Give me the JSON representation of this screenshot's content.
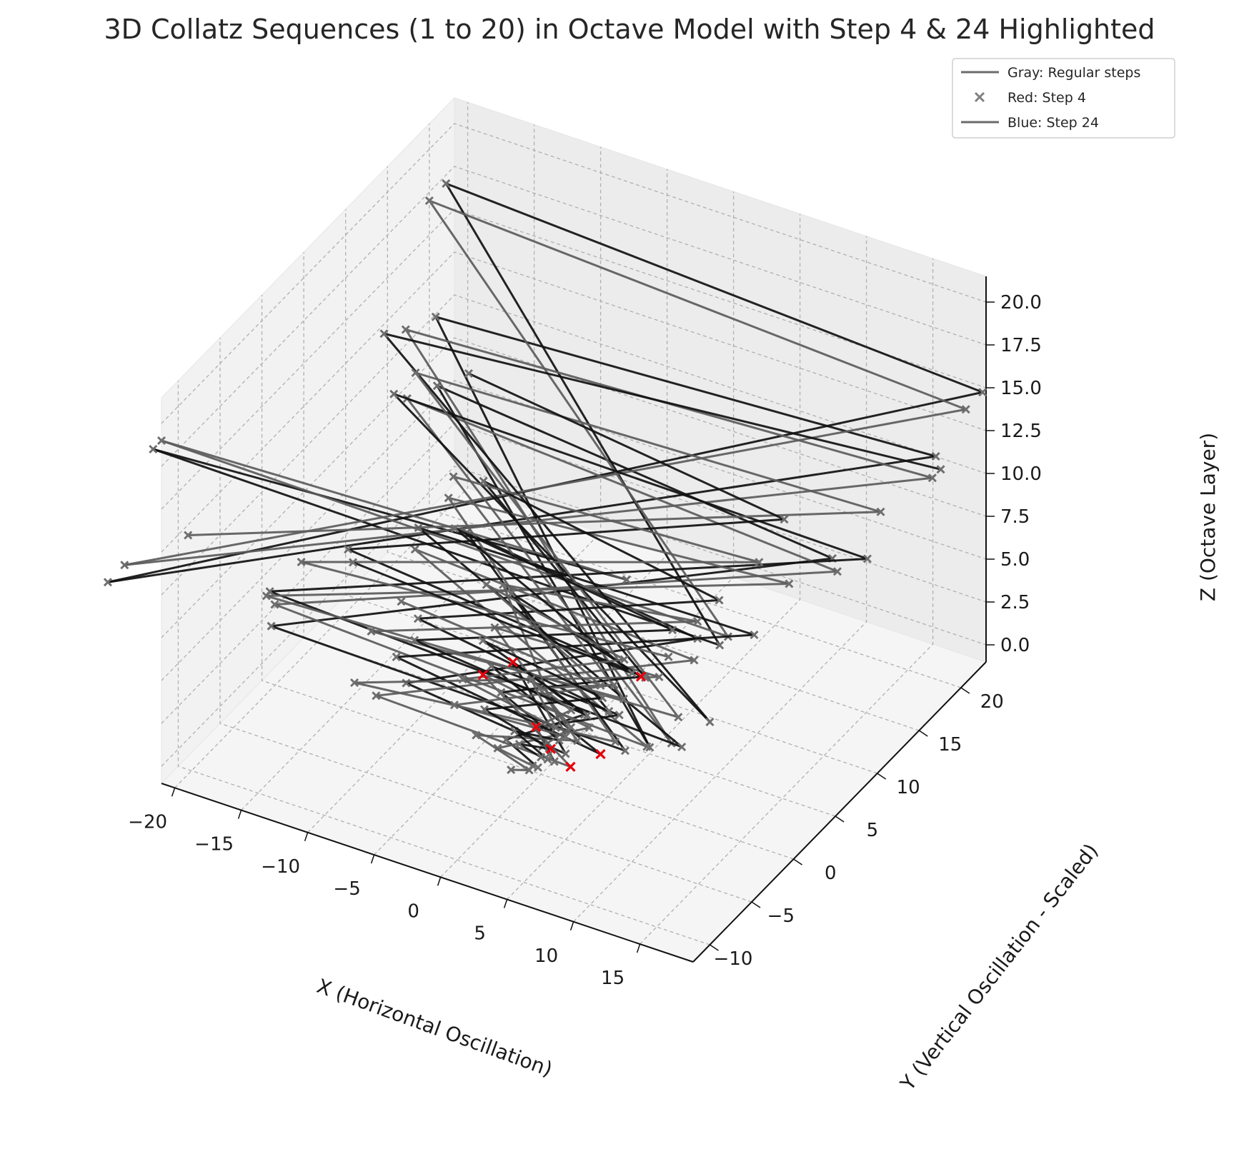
{
  "chart_data": {
    "type": "line3d",
    "title": "3D Collatz Sequences (1 to 20) in Octave Model with Step 4 & 24 Highlighted",
    "xlabel": "X (Horizontal Oscillation)",
    "ylabel": "Y (Vertical Oscillation - Scaled)",
    "zlabel": "Z (Octave Layer)",
    "xlim": [
      -21,
      19
    ],
    "ylim": [
      -12,
      23
    ],
    "zlim": [
      -1,
      21.5
    ],
    "xticks": [
      -20,
      -15,
      -10,
      -5,
      0,
      5,
      10,
      15
    ],
    "yticks": [
      -10,
      -5,
      0,
      5,
      10,
      15,
      20
    ],
    "zticks": [
      0.0,
      2.5,
      5.0,
      7.5,
      10.0,
      12.5,
      15.0,
      17.5,
      20.0
    ],
    "xtick_labels": [
      "−20",
      "−15",
      "−10",
      "−5",
      "0",
      "5",
      "10",
      "15"
    ],
    "ytick_labels": [
      "−10",
      "−5",
      "0",
      "5",
      "10",
      "15",
      "20"
    ],
    "ztick_labels": [
      "0.0",
      "2.5",
      "5.0",
      "7.5",
      "10.0",
      "12.5",
      "15.0",
      "17.5",
      "20.0"
    ],
    "grid": true,
    "legend_position": "top-right",
    "legend": [
      {
        "label": "Gray: Regular steps",
        "marker": "line",
        "color": "#6b6b6b"
      },
      {
        "label": "Red: Step 4",
        "marker": "x",
        "color": "#808080"
      },
      {
        "label": "Blue: Step 24",
        "marker": "line",
        "color": "#6b6b6b"
      }
    ],
    "colors": {
      "dark_line": "#111111",
      "gray_line": "#5c5c5c",
      "marker": "#6e6e6e",
      "highlight": "#e8000b"
    },
    "series": [
      {
        "points": [
          [
            0.4,
            -1,
            0
          ],
          [
            -2,
            -1,
            1
          ],
          [
            2,
            2,
            2
          ],
          [
            -4,
            3,
            3
          ],
          [
            5,
            -5,
            4
          ],
          [
            -7,
            -5,
            5
          ],
          [
            8,
            6,
            6
          ],
          [
            -10,
            7,
            7
          ],
          [
            12,
            -9,
            8
          ],
          [
            -14,
            -10,
            9
          ],
          [
            15,
            11,
            10
          ],
          [
            -16,
            13,
            11
          ],
          [
            17,
            -14,
            12
          ],
          [
            -18,
            16,
            13
          ],
          [
            19,
            17,
            14
          ],
          [
            -20,
            -20,
            15
          ],
          [
            20,
            21,
            16
          ],
          [
            -21,
            22,
            17
          ],
          [
            21,
            -12,
            18
          ],
          [
            -21,
            -13,
            19
          ],
          [
            14,
            -12,
            20
          ]
        ]
      },
      {
        "points": [
          [
            0,
            -1,
            0
          ],
          [
            -2,
            -2,
            1
          ],
          [
            3,
            1,
            2
          ],
          [
            -5,
            1,
            3
          ],
          [
            6,
            -6,
            4
          ],
          [
            -8,
            -7,
            5
          ],
          [
            9,
            4,
            6
          ],
          [
            -12,
            4,
            7
          ],
          [
            13,
            -8,
            8
          ],
          [
            -15,
            -8,
            9
          ],
          [
            16,
            10,
            10
          ],
          [
            -17,
            11,
            11
          ],
          [
            18,
            -13,
            12
          ],
          [
            -19,
            14,
            13
          ],
          [
            20,
            15,
            14
          ],
          [
            -20,
            -18,
            15
          ],
          [
            20,
            19,
            16
          ],
          [
            -21,
            20,
            17
          ],
          [
            21,
            -11,
            18
          ],
          [
            -21,
            -12,
            19
          ],
          [
            14,
            -12,
            20
          ]
        ]
      },
      {
        "points": [
          [
            1,
            0,
            0
          ],
          [
            -1,
            1,
            1
          ],
          [
            4,
            3,
            2
          ],
          [
            -5,
            2,
            3
          ],
          [
            7,
            -4,
            4
          ],
          [
            -9,
            -3,
            5
          ],
          [
            11,
            8,
            6
          ],
          [
            -13,
            6,
            7
          ],
          [
            15,
            -7,
            8
          ],
          [
            -16,
            -7,
            9
          ],
          [
            17,
            12,
            10
          ],
          [
            -18,
            11,
            11
          ],
          [
            19,
            -10,
            12
          ],
          [
            -20,
            13,
            13
          ],
          [
            20,
            16,
            14
          ]
        ]
      },
      {
        "points": [
          [
            -1,
            -2,
            0
          ],
          [
            1,
            -3,
            1
          ],
          [
            -3,
            -3,
            2
          ],
          [
            4,
            -2,
            3
          ],
          [
            -6,
            4,
            4
          ],
          [
            7,
            3,
            5
          ],
          [
            -9,
            -8,
            6
          ],
          [
            10,
            -7,
            7
          ],
          [
            -12,
            8,
            8
          ],
          [
            13,
            9,
            9
          ],
          [
            -15,
            -9,
            10
          ],
          [
            16,
            -9,
            11
          ],
          [
            -17,
            12,
            12
          ],
          [
            18,
            12,
            13
          ],
          [
            -19,
            -12,
            14
          ]
        ]
      },
      {
        "points": [
          [
            0.5,
            0,
            0
          ],
          [
            -2,
            0,
            1
          ],
          [
            2,
            -1,
            2
          ],
          [
            -3,
            0,
            3
          ],
          [
            5,
            4,
            4
          ],
          [
            -6,
            6,
            5
          ],
          [
            7,
            -3,
            6
          ],
          [
            -8,
            -2,
            7
          ],
          [
            9,
            7,
            8
          ],
          [
            -10,
            9,
            9
          ],
          [
            11,
            -5,
            10
          ],
          [
            -12,
            -4,
            11
          ],
          [
            12,
            10,
            12
          ],
          [
            -13,
            12,
            13
          ]
        ]
      },
      {
        "points": [
          [
            -0.5,
            1,
            0
          ],
          [
            1,
            2,
            1
          ],
          [
            -2,
            3,
            2
          ],
          [
            3,
            4,
            3
          ],
          [
            -4,
            -4,
            4
          ],
          [
            5,
            -5,
            5
          ],
          [
            -6,
            5,
            6
          ],
          [
            8,
            6,
            7
          ],
          [
            -9,
            -6,
            8
          ],
          [
            10,
            -6,
            9
          ],
          [
            -11,
            7,
            10
          ],
          [
            12,
            7,
            11
          ],
          [
            -13,
            -8,
            12
          ],
          [
            14,
            -7,
            13
          ]
        ]
      },
      {
        "points": [
          [
            0,
            0,
            0
          ],
          [
            -1,
            -1,
            1
          ],
          [
            2,
            -2,
            2
          ],
          [
            -3,
            -2,
            3
          ],
          [
            4,
            1,
            4
          ],
          [
            -5,
            1,
            5
          ],
          [
            6,
            -4,
            6
          ],
          [
            -7,
            -4,
            7
          ],
          [
            8,
            3,
            8
          ],
          [
            -9,
            4,
            9
          ],
          [
            10,
            -5,
            10
          ],
          [
            -11,
            -5,
            11
          ]
        ]
      },
      {
        "points": [
          [
            0.3,
            0.5,
            0
          ],
          [
            -1,
            1,
            1
          ],
          [
            1,
            2,
            2
          ],
          [
            -2,
            2,
            3
          ],
          [
            3,
            -3,
            4
          ],
          [
            -4,
            -3,
            5
          ],
          [
            5,
            2,
            6
          ],
          [
            -6,
            3,
            7
          ],
          [
            7,
            -4,
            8
          ],
          [
            -8,
            -4,
            9
          ]
        ]
      }
    ],
    "highlight_points": [
      [
        -4,
        3,
        3
      ],
      [
        7,
        -4,
        4
      ],
      [
        6,
        -6,
        4
      ],
      [
        -5,
        1,
        3
      ],
      [
        5,
        4,
        4
      ],
      [
        -1,
        1,
        1
      ],
      [
        2,
        -2,
        2
      ]
    ]
  }
}
